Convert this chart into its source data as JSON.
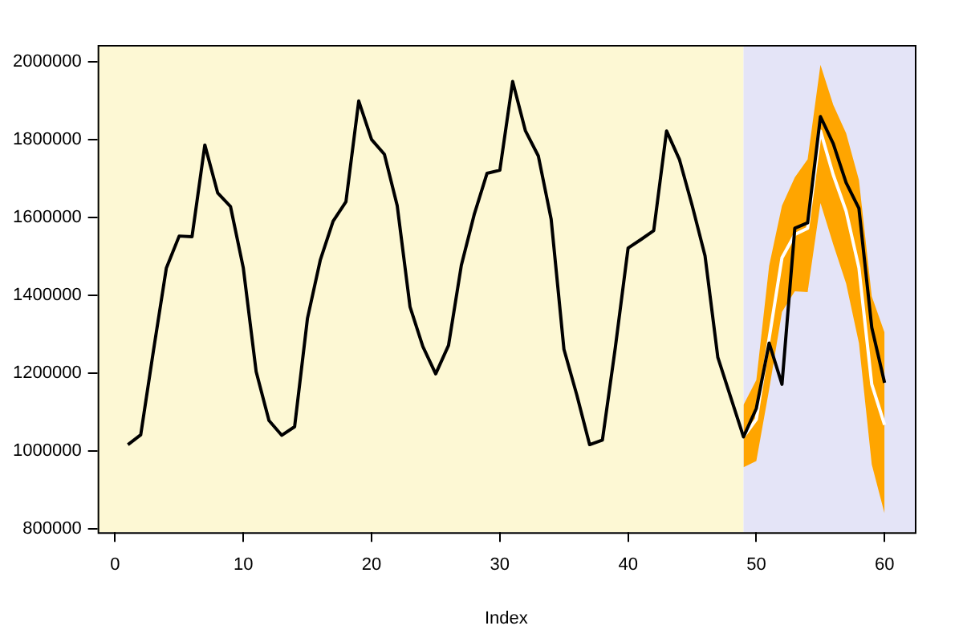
{
  "chart_data": {
    "type": "line",
    "xlabel": "Index",
    "xlim": [
      -1.36,
      62.36
    ],
    "ylim": [
      792000,
      2044000
    ],
    "xticks": [
      0,
      10,
      20,
      30,
      40,
      50,
      60
    ],
    "yticks": [
      800000,
      1000000,
      1200000,
      1400000,
      1600000,
      1800000,
      2000000
    ],
    "grid": false,
    "legend": false,
    "marker": "none",
    "line_style": "solid",
    "bands": [
      {
        "axis": "x",
        "from": -1.36,
        "to": 49,
        "color": "#fdf8d4"
      },
      {
        "axis": "x",
        "from": 49,
        "to": 62.36,
        "color": "#e4e4f7"
      }
    ],
    "series": [
      {
        "color": "#000000",
        "x": [
          1,
          2,
          3,
          4,
          5,
          6,
          7,
          8,
          9,
          10,
          11,
          12,
          13,
          14,
          15,
          16,
          17,
          18,
          19,
          20,
          21,
          22,
          23,
          24,
          25,
          26,
          27,
          28,
          29,
          30,
          31,
          32,
          33,
          34,
          35,
          36,
          37,
          38,
          39,
          40,
          41,
          42,
          43,
          44,
          45,
          46,
          47,
          48,
          49,
          50,
          51,
          52,
          53,
          54,
          55,
          56,
          57,
          58,
          59,
          60
        ],
        "values": [
          1017000,
          1042000,
          1260000,
          1471000,
          1553000,
          1551000,
          1787000,
          1664000,
          1629000,
          1471000,
          1205000,
          1079000,
          1041000,
          1063000,
          1341000,
          1491000,
          1591000,
          1641000,
          1900000,
          1801000,
          1763000,
          1631000,
          1371000,
          1269000,
          1199000,
          1272000,
          1478000,
          1608000,
          1714000,
          1722000,
          1950000,
          1823000,
          1759000,
          1597000,
          1262000,
          1145000,
          1017000,
          1029000,
          1265000,
          1522000,
          1544000,
          1567000,
          1823000,
          1750000,
          1631000,
          1502000,
          1241000,
          1139000,
          1037000,
          1110000,
          1278000,
          1172000,
          1573000,
          1587000,
          1860000,
          1790000,
          1690000,
          1624000,
          1318000,
          1176000
        ]
      },
      {
        "color": "#ffffff",
        "x": [
          49,
          50,
          51,
          52,
          53,
          54,
          55,
          56,
          57,
          58,
          59,
          60
        ],
        "values": [
          1037000,
          1082000,
          1290000,
          1497000,
          1557000,
          1573000,
          1823000,
          1710000,
          1617000,
          1471000,
          1172000,
          1068000
        ],
        "lower": [
          959000,
          975000,
          1159000,
          1358000,
          1411000,
          1409000,
          1638000,
          1531000,
          1431000,
          1278000,
          966000,
          840000
        ],
        "upper": [
          1119000,
          1183000,
          1477000,
          1631000,
          1704000,
          1750000,
          1993000,
          1890000,
          1817000,
          1697000,
          1398000,
          1305000
        ]
      }
    ]
  }
}
